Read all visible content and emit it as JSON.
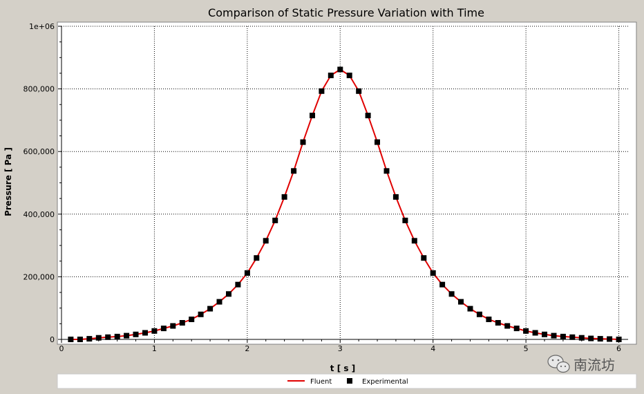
{
  "chart_data": {
    "type": "line",
    "title": "Comparison of Static Pressure Variation with Time",
    "xlabel": "t [ s ]",
    "ylabel": "Pressure [ Pa ]",
    "xlim": [
      0,
      6.1
    ],
    "ylim": [
      0,
      1000000
    ],
    "xticks": [
      "0",
      "1",
      "2",
      "3",
      "4",
      "5",
      "6"
    ],
    "yticks": [
      "0",
      "200,000",
      "400,000",
      "600,000",
      "800,000",
      "1e+06"
    ],
    "grid": true,
    "legend_position": "bottom",
    "series": [
      {
        "name": "Fluent",
        "style": "line",
        "color": "#e00000",
        "x": [
          0.1,
          0.2,
          0.3,
          0.4,
          0.5,
          0.6,
          0.7,
          0.8,
          0.9,
          1.0,
          1.1,
          1.2,
          1.3,
          1.4,
          1.5,
          1.6,
          1.7,
          1.8,
          1.9,
          2.0,
          2.1,
          2.2,
          2.3,
          2.4,
          2.5,
          2.6,
          2.7,
          2.8,
          2.9,
          3.0,
          3.1,
          3.2,
          3.3,
          3.4,
          3.5,
          3.6,
          3.7,
          3.8,
          3.9,
          4.0,
          4.1,
          4.2,
          4.3,
          4.4,
          4.5,
          4.6,
          4.7,
          4.8,
          4.9,
          5.0,
          5.1,
          5.2,
          5.3,
          5.4,
          5.5,
          5.6,
          5.7,
          5.8,
          5.9,
          6.0
        ],
        "y": [
          0,
          0,
          2000,
          5000,
          7000,
          9000,
          12000,
          16000,
          21000,
          27000,
          35000,
          43000,
          53000,
          64000,
          80000,
          98000,
          120000,
          145000,
          175000,
          212000,
          260000,
          315000,
          380000,
          455000,
          538000,
          630000,
          715000,
          793000,
          843000,
          862000,
          843000,
          793000,
          715000,
          630000,
          538000,
          455000,
          380000,
          315000,
          260000,
          212000,
          175000,
          145000,
          120000,
          98000,
          80000,
          64000,
          53000,
          43000,
          35000,
          27000,
          21000,
          16000,
          12000,
          9000,
          7000,
          5000,
          3000,
          2000,
          1000,
          0
        ]
      },
      {
        "name": "Experimental",
        "style": "marker",
        "color": "#000000",
        "x": [
          0.1,
          0.2,
          0.3,
          0.4,
          0.5,
          0.6,
          0.7,
          0.8,
          0.9,
          1.0,
          1.1,
          1.2,
          1.3,
          1.4,
          1.5,
          1.6,
          1.7,
          1.8,
          1.9,
          2.0,
          2.1,
          2.2,
          2.3,
          2.4,
          2.5,
          2.6,
          2.7,
          2.8,
          2.9,
          3.0,
          3.1,
          3.2,
          3.3,
          3.4,
          3.5,
          3.6,
          3.7,
          3.8,
          3.9,
          4.0,
          4.1,
          4.2,
          4.3,
          4.4,
          4.5,
          4.6,
          4.7,
          4.8,
          4.9,
          5.0,
          5.1,
          5.2,
          5.3,
          5.4,
          5.5,
          5.6,
          5.7,
          5.8,
          5.9,
          6.0
        ],
        "y": [
          0,
          0,
          2000,
          5000,
          7000,
          9000,
          12000,
          16000,
          21000,
          27000,
          35000,
          43000,
          53000,
          64000,
          80000,
          98000,
          120000,
          145000,
          175000,
          212000,
          260000,
          315000,
          380000,
          455000,
          538000,
          630000,
          715000,
          793000,
          843000,
          862000,
          843000,
          793000,
          715000,
          630000,
          538000,
          455000,
          380000,
          315000,
          260000,
          212000,
          175000,
          145000,
          120000,
          98000,
          80000,
          64000,
          53000,
          43000,
          35000,
          27000,
          21000,
          16000,
          12000,
          9000,
          7000,
          5000,
          3000,
          2000,
          1000,
          0
        ]
      }
    ]
  },
  "watermark": {
    "text": "南流坊",
    "icon": "wechat-icon"
  }
}
